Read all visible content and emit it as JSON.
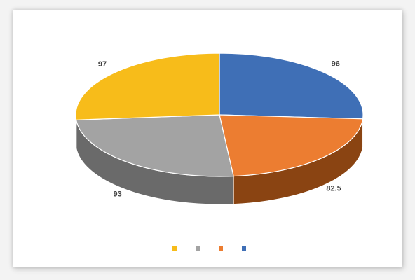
{
  "chart_data": {
    "type": "pie",
    "title": "",
    "categories": [
      "",
      "",
      "",
      ""
    ],
    "values": [
      96,
      82.5,
      93,
      97
    ],
    "value_labels": [
      "96",
      "82.5",
      "93",
      "97"
    ],
    "colors": [
      "#3f6fb6",
      "#ec7d31",
      "#a3a3a3",
      "#f7bc1a"
    ],
    "side_colors": [
      "#2b4e86",
      "#8a4412",
      "#6a6a6a",
      "#b98b0c"
    ],
    "style": "3d-pie",
    "legend_position": "bottom"
  }
}
